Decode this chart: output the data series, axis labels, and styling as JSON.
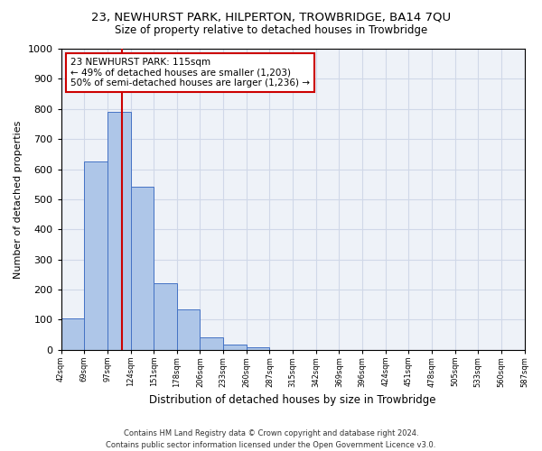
{
  "title": "23, NEWHURST PARK, HILPERTON, TROWBRIDGE, BA14 7QU",
  "subtitle": "Size of property relative to detached houses in Trowbridge",
  "xlabel": "Distribution of detached houses by size in Trowbridge",
  "ylabel": "Number of detached properties",
  "bar_values": [
    103,
    625,
    790,
    543,
    222,
    133,
    42,
    17,
    10,
    0,
    0,
    0,
    0,
    0,
    0,
    0,
    0,
    0,
    0,
    0
  ],
  "bar_labels": [
    "42sqm",
    "69sqm",
    "97sqm",
    "124sqm",
    "151sqm",
    "178sqm",
    "206sqm",
    "233sqm",
    "260sqm",
    "287sqm",
    "315sqm",
    "342sqm",
    "369sqm",
    "396sqm",
    "424sqm",
    "451sqm",
    "478sqm",
    "505sqm",
    "533sqm",
    "560sqm",
    "587sqm"
  ],
  "bar_color": "#aec6e8",
  "bar_edge_color": "#4472c4",
  "vline_x": 2.62,
  "vline_color": "#cc0000",
  "annotation_text": "23 NEWHURST PARK: 115sqm\n← 49% of detached houses are smaller (1,203)\n50% of semi-detached houses are larger (1,236) →",
  "annotation_box_color": "#ffffff",
  "annotation_box_edge": "#cc0000",
  "ylim": [
    0,
    1000
  ],
  "yticks": [
    0,
    100,
    200,
    300,
    400,
    500,
    600,
    700,
    800,
    900,
    1000
  ],
  "grid_color": "#d0d8e8",
  "bg_color": "#eef2f8",
  "footer_line1": "Contains HM Land Registry data © Crown copyright and database right 2024.",
  "footer_line2": "Contains public sector information licensed under the Open Government Licence v3.0."
}
